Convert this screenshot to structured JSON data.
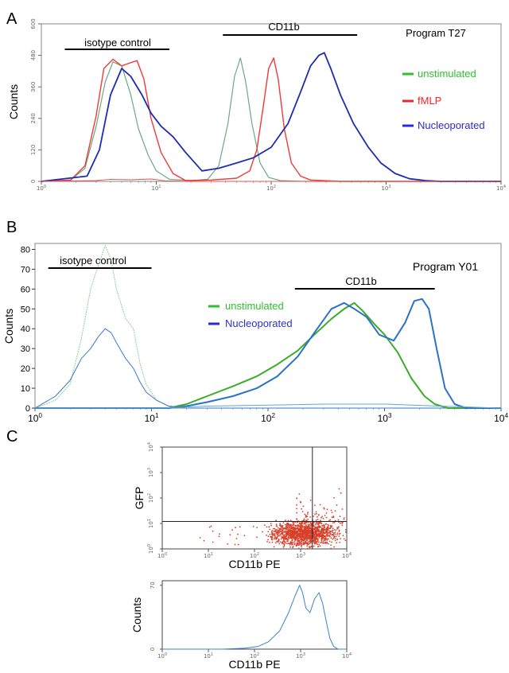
{
  "panel_labels": [
    "A",
    "B",
    "C"
  ],
  "chart_data": [
    {
      "type": "line",
      "panel": "A",
      "title": "Program T27",
      "xscale": "log",
      "xlim": [
        1,
        10000
      ],
      "ylim": [
        0,
        600
      ],
      "ylabel": "Counts",
      "xlabel": "",
      "xticks": [
        {
          "v": 1,
          "b": "10",
          "e": "0"
        },
        {
          "v": 10,
          "b": "10",
          "e": "1"
        },
        {
          "v": 100,
          "b": "10",
          "e": "2"
        },
        {
          "v": 1000,
          "b": "10",
          "e": "3"
        },
        {
          "v": 10000,
          "b": "10",
          "e": "4"
        }
      ],
      "yticks": [
        "0",
        "120",
        "240",
        "360",
        "480",
        "600"
      ],
      "ytick_values": [
        0,
        120,
        240,
        360,
        480,
        600
      ],
      "annotations": [
        {
          "text": "isotype control",
          "x_range": [
            1.6,
            13
          ]
        },
        {
          "text": "CD11b",
          "x_range": [
            38,
            560
          ]
        }
      ],
      "legend": {
        "position": "right",
        "entries": [
          {
            "label": "unstimulated",
            "color": "#2ec02e"
          },
          {
            "label": "fMLP",
            "color": "#e8282c"
          },
          {
            "label": "Nucleoporated",
            "color": "#2a2ad8"
          }
        ]
      },
      "series": [
        {
          "name": "unstimulated",
          "color": "#6aaa80",
          "width": 1.2,
          "x": [
            1,
            1.8,
            2.4,
            3,
            3.6,
            4.2,
            5,
            6,
            7,
            8.5,
            10,
            13,
            20,
            28,
            35,
            42,
            48,
            54,
            60,
            68,
            80,
            95,
            120,
            200,
            10000
          ],
          "y": [
            0,
            5,
            50,
            210,
            380,
            455,
            440,
            330,
            200,
            100,
            40,
            8,
            3,
            8,
            60,
            220,
            400,
            470,
            380,
            220,
            70,
            15,
            3,
            0,
            0
          ]
        },
        {
          "name": "fMLP",
          "color": "#ee3a3a",
          "width": 1.4,
          "x": [
            1,
            1.8,
            2.4,
            3,
            3.5,
            4.2,
            5,
            5.8,
            6.8,
            7.8,
            9,
            11,
            14,
            18,
            30,
            50,
            65,
            75,
            85,
            95,
            105,
            115,
            130,
            150,
            180,
            220,
            400,
            10000
          ],
          "y": [
            0,
            5,
            60,
            250,
            430,
            465,
            440,
            450,
            460,
            390,
            240,
            110,
            30,
            3,
            5,
            12,
            40,
            120,
            280,
            430,
            470,
            390,
            200,
            70,
            20,
            5,
            0,
            0
          ]
        },
        {
          "name": "Nucleoporated",
          "color": "#1e2cb0",
          "width": 1.8,
          "x": [
            1,
            2.5,
            3.2,
            4,
            5,
            6,
            7.5,
            9,
            11,
            14,
            18,
            25,
            35,
            50,
            70,
            100,
            140,
            180,
            220,
            260,
            290,
            330,
            400,
            520,
            700,
            900,
            1200,
            1600,
            2200,
            3000,
            10000
          ],
          "y": [
            0,
            20,
            120,
            330,
            430,
            400,
            330,
            260,
            210,
            170,
            110,
            40,
            50,
            70,
            90,
            130,
            220,
            340,
            440,
            480,
            490,
            430,
            330,
            220,
            130,
            70,
            30,
            10,
            3,
            0,
            0
          ]
        },
        {
          "name": "",
          "color": "#e85050",
          "width": 0.9,
          "x": [
            1,
            3,
            4,
            6,
            9,
            12,
            20,
            10000
          ],
          "y": [
            0,
            3,
            8,
            6,
            9,
            2,
            0,
            0
          ]
        }
      ]
    },
    {
      "type": "line",
      "panel": "B",
      "title": "Program Y01",
      "xscale": "log",
      "xlim": [
        1,
        10000
      ],
      "ylim": [
        0,
        83
      ],
      "ylabel": "Counts",
      "xlabel": "",
      "xticks": [
        {
          "v": 1,
          "b": "10",
          "e": "0"
        },
        {
          "v": 10,
          "b": "10",
          "e": "1"
        },
        {
          "v": 100,
          "b": "10",
          "e": "2"
        },
        {
          "v": 1000,
          "b": "10",
          "e": "3"
        },
        {
          "v": 10000,
          "b": "10",
          "e": "4"
        }
      ],
      "yticks": [
        "0",
        "10",
        "20",
        "30",
        "40",
        "50",
        "60",
        "70",
        "80"
      ],
      "ytick_values": [
        0,
        10,
        20,
        30,
        40,
        50,
        60,
        70,
        80
      ],
      "annotations": [
        {
          "text": "isotype control",
          "x_range": [
            1.3,
            10
          ]
        },
        {
          "text": "CD11b",
          "x_range": [
            170,
            2700
          ]
        }
      ],
      "legend": {
        "position": "center",
        "entries": [
          {
            "label": "unstimulated",
            "color": "#2ec02e"
          },
          {
            "label": "Nucleoporated",
            "color": "#2a2ad8"
          }
        ]
      },
      "series": [
        {
          "name": "unstimulated",
          "color": "#8fd08f",
          "width": 1,
          "dash": "2,1",
          "x": [
            1,
            1.5,
            2,
            2.5,
            3,
            3.5,
            4,
            4.5,
            5,
            6,
            7,
            8,
            9,
            11,
            14,
            20,
            10000
          ],
          "y": [
            0,
            4,
            12,
            35,
            60,
            72,
            82,
            75,
            60,
            45,
            40,
            22,
            12,
            4,
            1,
            0,
            0
          ]
        },
        {
          "name": "Nucleoporated",
          "color": "#3a78c8",
          "width": 1,
          "x": [
            1,
            1.5,
            2,
            2.5,
            3,
            3.5,
            4,
            4.5,
            5,
            6,
            7,
            8,
            9,
            11,
            14,
            20,
            10000
          ],
          "y": [
            0,
            6,
            14,
            25,
            30,
            36,
            40,
            38,
            33,
            25,
            20,
            13,
            8,
            4,
            1,
            0,
            0
          ]
        },
        {
          "name": "unstimulated",
          "color": "#3cac28",
          "width": 2,
          "x": [
            1,
            14,
            20,
            30,
            50,
            80,
            120,
            180,
            250,
            350,
            450,
            550,
            650,
            800,
            1000,
            1300,
            1700,
            2200,
            2700,
            3500,
            10000
          ],
          "y": [
            0,
            0,
            2,
            6,
            11,
            16,
            22,
            29,
            37,
            45,
            50,
            53,
            49,
            43,
            37,
            28,
            15,
            6,
            2,
            0,
            0
          ]
        },
        {
          "name": "Nucleoporated",
          "color": "#2a72c8",
          "width": 2,
          "x": [
            1,
            14,
            20,
            30,
            50,
            80,
            120,
            180,
            250,
            350,
            450,
            550,
            700,
            900,
            1200,
            1500,
            1800,
            2100,
            2400,
            2800,
            3300,
            4000,
            5000,
            10000
          ],
          "y": [
            0,
            0,
            1,
            3,
            6,
            10,
            16,
            26,
            38,
            50,
            53,
            50,
            46,
            37,
            34,
            43,
            54,
            55,
            50,
            30,
            10,
            2,
            0,
            0
          ]
        },
        {
          "name": "",
          "color": "#5aa8d8",
          "width": 1,
          "x": [
            1,
            12,
            30,
            100,
            300,
            1000,
            3000,
            10000
          ],
          "y": [
            0,
            0,
            1,
            1.5,
            2,
            2,
            1,
            0
          ]
        }
      ]
    },
    {
      "type": "scatter",
      "panel": "C",
      "title": "",
      "xscale": "log",
      "yscale": "log",
      "xlim": [
        1,
        10000
      ],
      "ylim": [
        1,
        10000
      ],
      "xlabel": "CD11b PE",
      "ylabel": "GFP",
      "xticks": [
        {
          "v": 1,
          "b": "10",
          "e": "0"
        },
        {
          "v": 10,
          "b": "10",
          "e": "1"
        },
        {
          "v": 100,
          "b": "10",
          "e": "2"
        },
        {
          "v": 1000,
          "b": "10",
          "e": "3"
        },
        {
          "v": 10000,
          "b": "10",
          "e": "4"
        }
      ],
      "yticks": [
        {
          "v": 1,
          "b": "10",
          "e": "0"
        },
        {
          "v": 10,
          "b": "10",
          "e": "1"
        },
        {
          "v": 100,
          "b": "10",
          "e": "2"
        },
        {
          "v": 1000,
          "b": "10",
          "e": "3"
        },
        {
          "v": 10000,
          "b": "10",
          "e": "4"
        }
      ],
      "gates": {
        "x": 1800,
        "y": 12
      },
      "point_color": "#d8402a",
      "cluster": {
        "x_center": 1200,
        "y_center": 4,
        "note": "dense population, CD11b 300-8000, GFP 1-15"
      }
    },
    {
      "type": "line",
      "panel": "C",
      "title": "",
      "xscale": "log",
      "xlim": [
        1,
        10000
      ],
      "ylim": [
        0,
        75
      ],
      "xlabel": "CD11b PE",
      "ylabel": "Counts",
      "xticks": [
        {
          "v": 1,
          "b": "10",
          "e": "0"
        },
        {
          "v": 10,
          "b": "10",
          "e": "1"
        },
        {
          "v": 100,
          "b": "10",
          "e": "2"
        },
        {
          "v": 1000,
          "b": "10",
          "e": "3"
        },
        {
          "v": 10000,
          "b": "10",
          "e": "4"
        }
      ],
      "yticks": [
        "0",
        "70"
      ],
      "ytick_values": [
        0,
        70
      ],
      "series": [
        {
          "name": "",
          "color": "#3a82d0",
          "width": 1,
          "x": [
            1,
            20,
            60,
            120,
            200,
            350,
            550,
            750,
            950,
            1100,
            1300,
            1600,
            2000,
            2500,
            3000,
            3600,
            4300,
            5200,
            6500,
            10000
          ],
          "y": [
            0,
            0,
            1,
            3,
            8,
            20,
            40,
            58,
            70,
            62,
            45,
            40,
            55,
            62,
            50,
            30,
            12,
            3,
            0,
            0
          ]
        }
      ]
    }
  ]
}
